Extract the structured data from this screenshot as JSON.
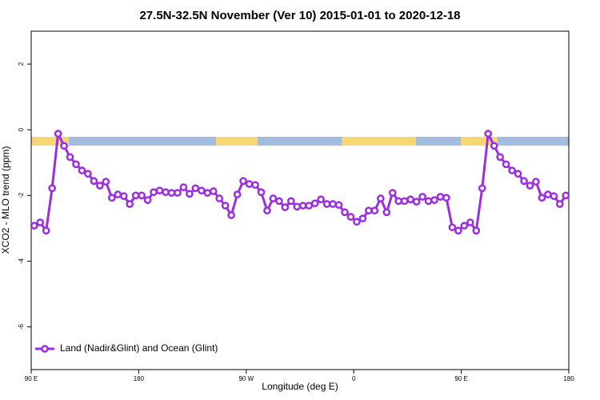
{
  "chart_data": {
    "type": "line",
    "title": "27.5N-32.5N November (Ver 10)   2015-01-01 to 2020-12-18",
    "xlabel": "Longitude (deg E)",
    "ylabel": "XCO2 - MLO trend (ppm)",
    "x": [
      92.5,
      97.5,
      102.5,
      107.5,
      112.5,
      117.5,
      122.5,
      127.5,
      132.5,
      137.5,
      142.5,
      147.5,
      152.5,
      157.5,
      162.5,
      167.5,
      172.5,
      177.5,
      182.5,
      187.5,
      192.5,
      197.5,
      202.5,
      207.5,
      212.5,
      217.5,
      222.5,
      227.5,
      232.5,
      237.5,
      242.5,
      247.5,
      252.5,
      257.5,
      262.5,
      267.5,
      272.5,
      277.5,
      282.5,
      287.5,
      292.5,
      297.5,
      302.5,
      307.5,
      312.5,
      317.5,
      322.5,
      327.5,
      332.5,
      337.5,
      342.5,
      347.5,
      352.5,
      357.5,
      362.5,
      367.5,
      372.5,
      377.5,
      382.5,
      387.5,
      392.5,
      397.5,
      402.5,
      407.5,
      412.5,
      417.5,
      422.5,
      427.5,
      432.5,
      437.5,
      442.5,
      447.5,
      452.5,
      457.5,
      462.5,
      467.5,
      472.5,
      477.5,
      482.5,
      487.5,
      492.5,
      497.5,
      502.5,
      507.5,
      512.5,
      517.5,
      522.5,
      527.5,
      532.5,
      537.5
    ],
    "series": [
      {
        "name": "Land (Nadir&Glint) and Ocean (Glint)",
        "color": "#9b2fe0",
        "values": [
          -2.92,
          -2.82,
          -3.07,
          -1.78,
          -0.12,
          -0.49,
          -0.83,
          -1.05,
          -1.24,
          -1.34,
          -1.56,
          -1.7,
          -1.58,
          -2.07,
          -1.97,
          -2.02,
          -2.26,
          -2.0,
          -2.0,
          -2.14,
          -1.9,
          -1.85,
          -1.9,
          -1.92,
          -1.92,
          -1.75,
          -1.95,
          -1.78,
          -1.85,
          -1.92,
          -1.87,
          -2.09,
          -2.31,
          -2.6,
          -1.97,
          -1.56,
          -1.65,
          -1.68,
          -1.9,
          -2.46,
          -2.09,
          -2.17,
          -2.36,
          -2.17,
          -2.34,
          -2.31,
          -2.31,
          -2.24,
          -2.12,
          -2.26,
          -2.26,
          -2.29,
          -2.51,
          -2.65,
          -2.8,
          -2.7,
          -2.46,
          -2.46,
          -2.09,
          -2.51,
          -1.92,
          -2.17,
          -2.17,
          -2.12,
          -2.19,
          -2.04,
          -2.17,
          -2.14,
          -2.04,
          -2.07,
          -2.97,
          -3.07,
          -2.92,
          -2.82,
          -3.07,
          -1.78,
          -0.12,
          -0.49,
          -0.83,
          -1.05,
          -1.24,
          -1.34,
          -1.56,
          -1.7,
          -1.58,
          -2.07,
          -1.97,
          -2.02,
          -2.26,
          -2.0
        ]
      }
    ],
    "xlim": [
      90,
      540
    ],
    "xticks": [
      {
        "value": 90,
        "label": "90 E"
      },
      180,
      {
        "value": 270,
        "label": "90 W"
      },
      {
        "value": 360,
        "label": "0"
      },
      {
        "value": 450,
        "label": "90 E"
      },
      {
        "value": 540,
        "label": "180"
      }
    ],
    "ylim": [
      -7.3,
      3
    ],
    "yticks": [
      2,
      0,
      -2,
      -4,
      -6
    ],
    "legend": "lower left"
  }
}
